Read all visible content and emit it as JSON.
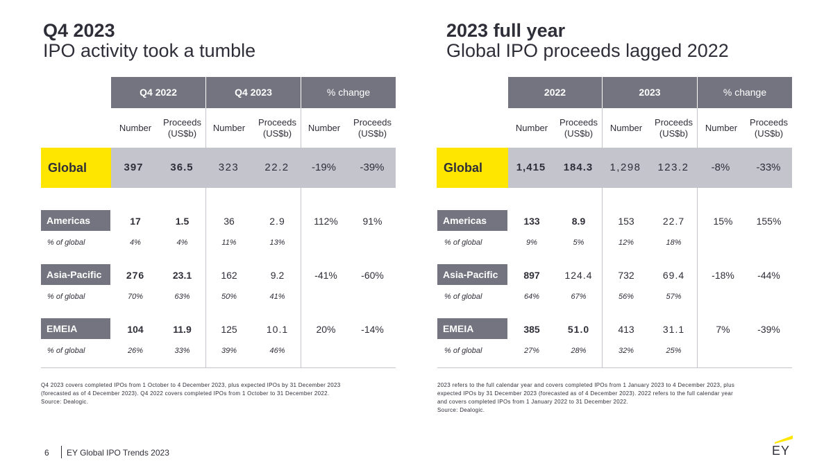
{
  "left": {
    "title": "Q4 2023",
    "subtitle": "IPO activity took a tumble",
    "header": {
      "col1": "Q4 2022",
      "col2": "Q4 2023",
      "col3": "% change"
    },
    "subheaders": [
      "Number",
      "Proceeds (US$b)",
      "Number",
      "Proceeds (US$b)",
      "Number",
      "Proceeds (US$b)"
    ],
    "global": {
      "label": "Global",
      "values": [
        "397",
        "36.5",
        "323",
        "22.2",
        "-19%",
        "-39%"
      ]
    },
    "regions": [
      {
        "label": "Americas",
        "values": [
          "17",
          "1.5",
          "36",
          "2.9",
          "112%",
          "91%"
        ],
        "pct_label": "% of global",
        "pcts": [
          "4%",
          "4%",
          "11%",
          "13%"
        ]
      },
      {
        "label": "Asia-Pacific",
        "values": [
          "276",
          "23.1",
          "162",
          "9.2",
          "-41%",
          "-60%"
        ],
        "pct_label": "% of global",
        "pcts": [
          "70%",
          "63%",
          "50%",
          "41%"
        ]
      },
      {
        "label": "EMEIA",
        "values": [
          "104",
          "11.9",
          "125",
          "10.1",
          "20%",
          "-14%"
        ],
        "pct_label": "% of global",
        "pcts": [
          "26%",
          "33%",
          "39%",
          "46%"
        ]
      }
    ],
    "footnote": [
      "Q4 2023 covers completed IPOs from 1 October to 4 December 2023, plus expected IPOs by 31 December 2023",
      "(forecasted as of 4 December 2023). Q4 2022 covers completed IPOs from 1 October to 31 December 2022.",
      "Source: Dealogic."
    ]
  },
  "right": {
    "title": "2023 full year",
    "subtitle": "Global IPO proceeds lagged 2022",
    "header": {
      "col1": "2022",
      "col2": "2023",
      "col3": "% change"
    },
    "subheaders": [
      "Number",
      "Proceeds (US$b)",
      "Number",
      "Proceeds (US$b)",
      "Number",
      "Proceeds (US$b)"
    ],
    "global": {
      "label": "Global",
      "values": [
        "1,415",
        "184.3",
        "1,298",
        "123.2",
        "-8%",
        "-33%"
      ]
    },
    "regions": [
      {
        "label": "Americas",
        "values": [
          "133",
          "8.9",
          "153",
          "22.7",
          "15%",
          "155%"
        ],
        "pct_label": "% of global",
        "pcts": [
          "9%",
          "5%",
          "12%",
          "18%"
        ]
      },
      {
        "label": "Asia-Pacific",
        "values": [
          "897",
          "124.4",
          "732",
          "69.4",
          "-18%",
          "-44%"
        ],
        "pct_label": "% of global",
        "pcts": [
          "64%",
          "67%",
          "56%",
          "57%"
        ]
      },
      {
        "label": "EMEIA",
        "values": [
          "385",
          "51.0",
          "413",
          "31.1",
          "7%",
          "-39%"
        ],
        "pct_label": "% of global",
        "pcts": [
          "27%",
          "28%",
          "32%",
          "25%"
        ]
      }
    ],
    "footnote": [
      "2023 refers to the full calendar year and covers completed IPOs from 1 January 2023 to 4 December 2023, plus",
      "expected IPOs by 31 December 2023 (forecasted as of 4 December 2023). 2022 refers to the full calendar year",
      "and covers completed IPOs from 1 January 2022 to 31 December 2022.",
      "Source: Dealogic."
    ]
  },
  "footer": {
    "page": "6",
    "text": "EY Global IPO Trends 2023",
    "logo": "EY"
  },
  "colors": {
    "yellow": "#ffe600",
    "dark_grey": "#747480",
    "light_grey": "#c4c4cd",
    "text": "#2e2e38"
  }
}
